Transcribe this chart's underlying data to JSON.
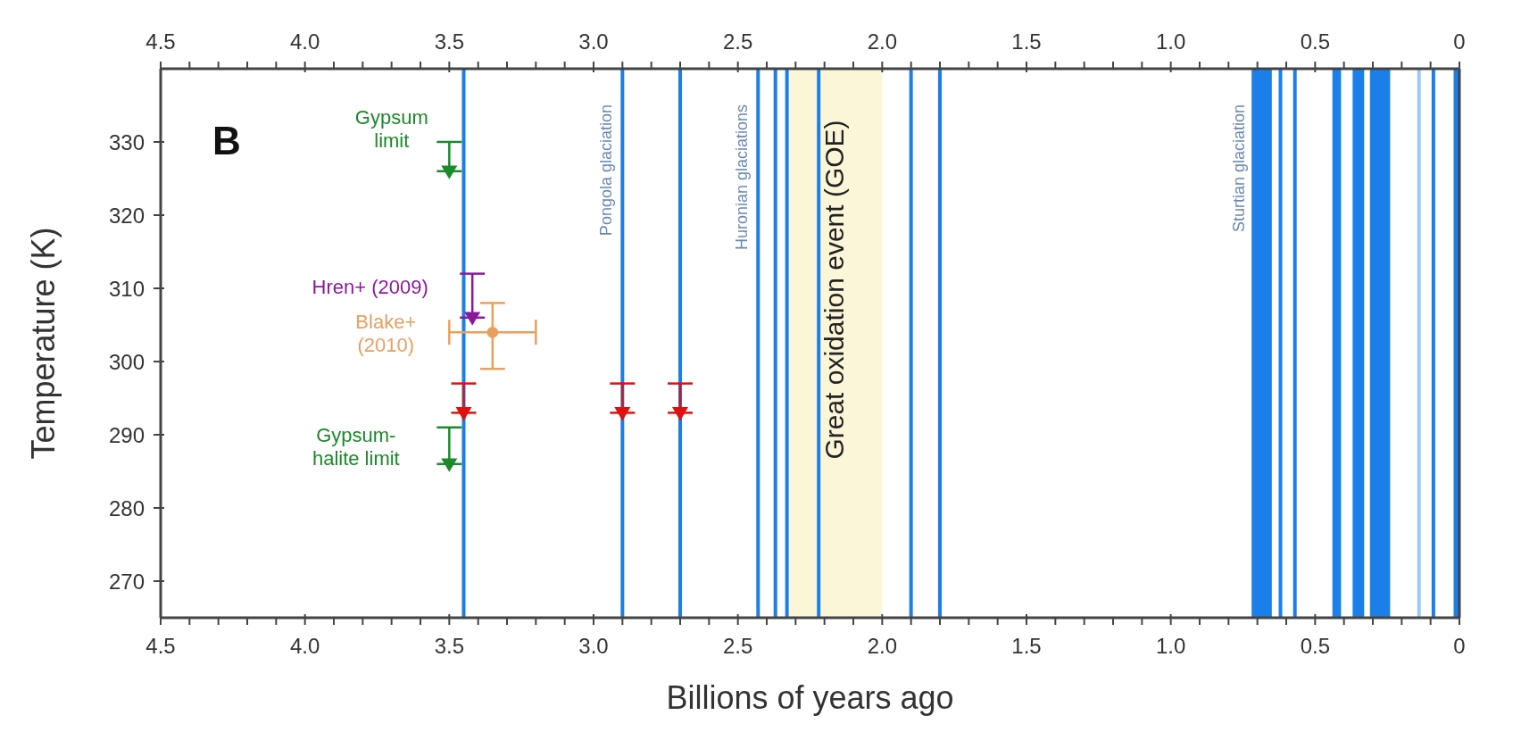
{
  "chart_data": {
    "type": "scatter",
    "xlabel": "Billions of years ago",
    "ylabel": "Temperature (K)",
    "annotations": [
      "B"
    ],
    "xlim": [
      4.5,
      0
    ],
    "x2lim": [
      4.5,
      0
    ],
    "xticks": [
      4.5,
      {
        "value": 4.4,
        "label": null
      },
      {
        "value": 4.3,
        "label": null
      },
      {
        "value": 4.2,
        "label": null
      },
      {
        "value": 4.1,
        "label": null
      },
      {
        "value": 4.0,
        "label": "4.0"
      },
      {
        "value": 3.9,
        "label": null
      },
      {
        "value": 3.8,
        "label": null
      },
      {
        "value": 3.7,
        "label": null
      },
      {
        "value": 3.6,
        "label": null
      },
      3.5,
      {
        "value": 3.4,
        "label": null
      },
      {
        "value": 3.3,
        "label": null
      },
      {
        "value": 3.2,
        "label": null
      },
      {
        "value": 3.1,
        "label": null
      },
      {
        "value": 3.0,
        "label": "3.0"
      },
      {
        "value": 2.9,
        "label": null
      },
      {
        "value": 2.8,
        "label": null
      },
      {
        "value": 2.7,
        "label": null
      },
      {
        "value": 2.6,
        "label": null
      },
      2.5,
      {
        "value": 2.4,
        "label": null
      },
      {
        "value": 2.3,
        "label": null
      },
      {
        "value": 2.2,
        "label": null
      },
      {
        "value": 2.1,
        "label": null
      },
      {
        "value": 2.0,
        "label": "2.0"
      },
      {
        "value": 1.9,
        "label": null
      },
      {
        "value": 1.8,
        "label": null
      },
      {
        "value": 1.7,
        "label": null
      },
      {
        "value": 1.6,
        "label": null
      },
      1.5,
      {
        "value": 1.4,
        "label": null
      },
      {
        "value": 1.3,
        "label": null
      },
      {
        "value": 1.2,
        "label": null
      },
      {
        "value": 1.1,
        "label": null
      },
      {
        "value": 1.0,
        "label": "1.0"
      },
      {
        "value": 0.9,
        "label": null
      },
      {
        "value": 0.8,
        "label": null
      },
      {
        "value": 0.7,
        "label": null
      },
      {
        "value": 0.6,
        "label": null
      },
      0.5,
      {
        "value": 0.4,
        "label": null
      },
      {
        "value": 0.3,
        "label": null
      },
      {
        "value": 0.2,
        "label": null
      },
      {
        "value": 0.1,
        "label": null
      },
      0
    ],
    "x2ticks": [
      4.5,
      {
        "value": 4.4,
        "label": null
      },
      {
        "value": 4.3,
        "label": null
      },
      {
        "value": 4.2,
        "label": null
      },
      {
        "value": 4.1,
        "label": null
      },
      {
        "value": 4.0,
        "label": "4.0"
      },
      {
        "value": 3.9,
        "label": null
      },
      {
        "value": 3.8,
        "label": null
      },
      {
        "value": 3.7,
        "label": null
      },
      {
        "value": 3.6,
        "label": null
      },
      3.5,
      {
        "value": 3.4,
        "label": null
      },
      {
        "value": 3.3,
        "label": null
      },
      {
        "value": 3.2,
        "label": null
      },
      {
        "value": 3.1,
        "label": null
      },
      {
        "value": 3.0,
        "label": "3.0"
      },
      {
        "value": 2.9,
        "label": null
      },
      {
        "value": 2.8,
        "label": null
      },
      {
        "value": 2.7,
        "label": null
      },
      {
        "value": 2.6,
        "label": null
      },
      2.5,
      {
        "value": 2.4,
        "label": null
      },
      {
        "value": 2.3,
        "label": null
      },
      {
        "value": 2.2,
        "label": null
      },
      {
        "value": 2.1,
        "label": null
      },
      {
        "value": 2.0,
        "label": "2.0"
      },
      {
        "value": 1.9,
        "label": null
      },
      {
        "value": 1.8,
        "label": null
      },
      {
        "value": 1.7,
        "label": null
      },
      {
        "value": 1.6,
        "label": null
      },
      1.5,
      {
        "value": 1.4,
        "label": null
      },
      {
        "value": 1.3,
        "label": null
      },
      {
        "value": 1.2,
        "label": null
      },
      {
        "value": 1.1,
        "label": null
      },
      {
        "value": 1.0,
        "label": "1.0"
      },
      {
        "value": 0.9,
        "label": null
      },
      {
        "value": 0.8,
        "label": null
      },
      {
        "value": 0.7,
        "label": null
      },
      {
        "value": 0.6,
        "label": null
      },
      0.5,
      {
        "value": 0.4,
        "label": null
      },
      {
        "value": 0.3,
        "label": null
      },
      {
        "value": 0.2,
        "label": null
      },
      {
        "value": 0.1,
        "label": null
      },
      0
    ],
    "ylim": [
      265,
      340
    ],
    "yticks": [
      270,
      280,
      290,
      300,
      310,
      320,
      330
    ],
    "grid": false,
    "legend": "left",
    "marker": "triangle",
    "series": [
      {
        "name": "Gypsum limit",
        "color": "#1a8a2a",
        "x": [
          3.5
        ],
        "values": [
          326
        ],
        "errors": [
          [
            326,
            330
          ]
        ]
      },
      {
        "name": "Hren+ (2009)",
        "color": "#8b1a9b",
        "x": [
          3.42
        ],
        "values": [
          306
        ],
        "errors": [
          [
            306,
            312
          ]
        ]
      },
      {
        "name": "Blake+ (2010)",
        "color": "#e8a060",
        "marker": "circle",
        "x": [
          3.35
        ],
        "values": [
          304
        ],
        "errors": [
          [
            299,
            308
          ]
        ],
        "xerrors": [
          [
            3.5,
            3.2
          ]
        ]
      },
      {
        "color": "#e01010",
        "x": [
          3.45,
          2.9,
          2.7
        ],
        "values": [
          293,
          293,
          293
        ],
        "errors": [
          [
            293,
            297
          ],
          [
            293,
            297
          ],
          [
            293,
            297
          ]
        ]
      },
      {
        "name": "Gypsum-halite limit",
        "color": "#1a8a2a",
        "x": [
          3.5
        ],
        "values": [
          286
        ],
        "errors": [
          [
            286,
            291
          ]
        ]
      }
    ],
    "bands": [
      {
        "axis": "x",
        "from": 2.33,
        "to": 2.0,
        "label": "Great oxidation event (GOE)",
        "color": "#fbf6d8"
      },
      {
        "axis": "x",
        "from": 0.72,
        "to": 0.65,
        "label": "Sturtian glaciation",
        "color": "#1a7fe8"
      },
      {
        "axis": "x",
        "from": 0.44,
        "to": 0.41,
        "color": "#1a7fe8"
      },
      {
        "axis": "x",
        "from": 0.37,
        "to": 0.33,
        "color": "#1a7fe8"
      },
      {
        "axis": "x",
        "from": 0.31,
        "to": 0.24,
        "color": "#1a7fe8"
      },
      {
        "axis": "x",
        "from": 0.02,
        "to": 0.0,
        "color": "#1a7fe8"
      }
    ],
    "ref_lines": [
      {
        "axis": "x",
        "value": 3.45,
        "color": "#1a7fe8"
      },
      {
        "axis": "x",
        "value": 2.9,
        "label": "Pongola glaciation",
        "color": "#1a7fe8"
      },
      {
        "axis": "x",
        "value": 2.7,
        "color": "#1a7fe8"
      },
      {
        "axis": "x",
        "value": 2.43,
        "label": "Huronian glaciations",
        "color": "#1a7fe8"
      },
      {
        "axis": "x",
        "value": 2.37,
        "color": "#1a7fe8"
      },
      {
        "axis": "x",
        "value": 2.33,
        "color": "#1a7fe8"
      },
      {
        "axis": "x",
        "value": 2.22,
        "color": "#1a7fe8"
      },
      {
        "axis": "x",
        "value": 1.9,
        "color": "#1a7fe8"
      },
      {
        "axis": "x",
        "value": 1.8,
        "color": "#1a7fe8"
      },
      {
        "axis": "x",
        "value": 0.62,
        "color": "#1a7fe8"
      },
      {
        "axis": "x",
        "value": 0.57,
        "color": "#1a7fe8"
      },
      {
        "axis": "x",
        "value": 0.14,
        "color": "#9cc8f4"
      },
      {
        "axis": "x",
        "value": 0.09,
        "color": "#1a7fe8"
      }
    ]
  }
}
